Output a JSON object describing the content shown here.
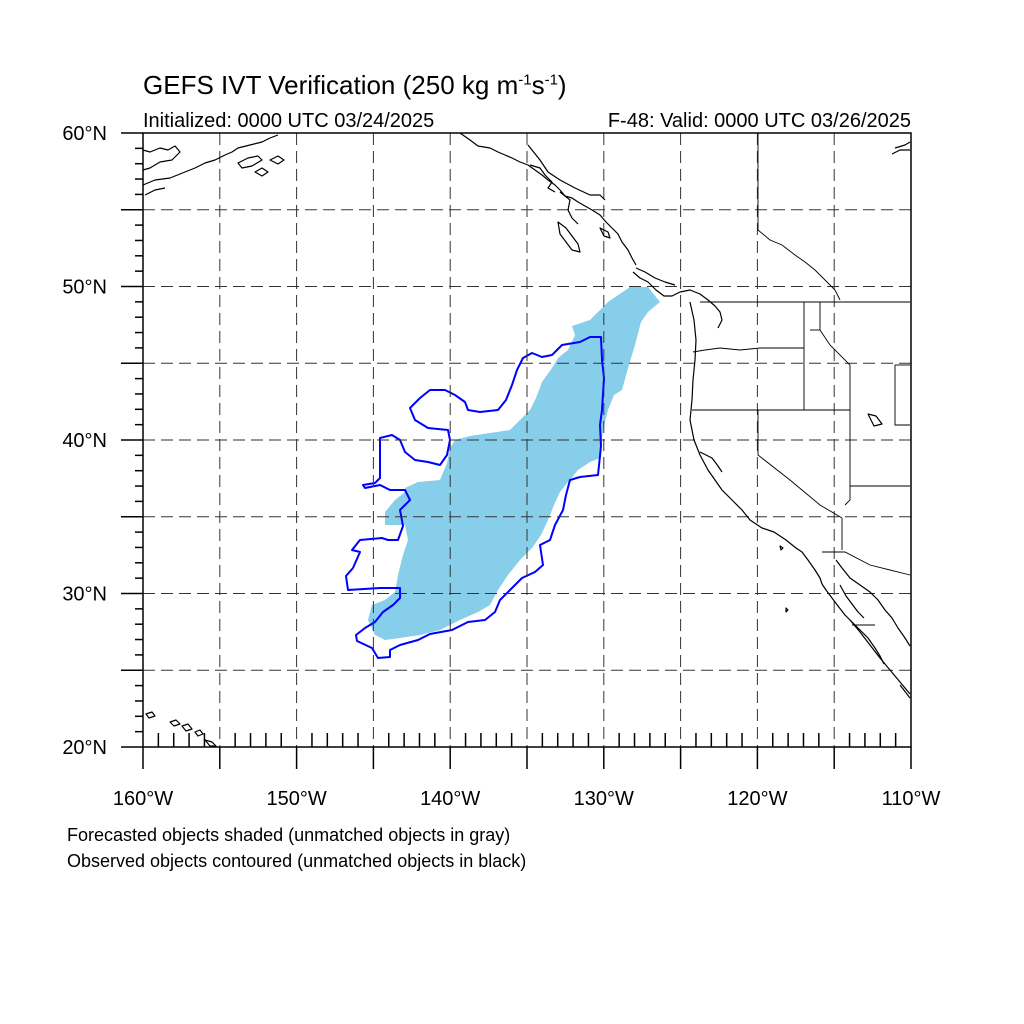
{
  "map": {
    "title_main": "GEFS IVT Verification (250 kg m",
    "title_exp1": "-1",
    "title_s": "s",
    "title_exp2": "-1",
    "title_close": ")",
    "initialized": "Initialized: 0000 UTC 03/24/2025",
    "valid": "F-48: Valid: 0000 UTC 03/26/2025",
    "lat_labels": [
      "60°N",
      "50°N",
      "40°N",
      "30°N",
      "20°N"
    ],
    "lon_labels": [
      "160°W",
      "150°W",
      "140°W",
      "130°W",
      "120°W",
      "110°W"
    ],
    "extent": {
      "lon_min": -160,
      "lon_max": -110,
      "lat_min": 20,
      "lat_max": 60
    },
    "grid": "dashed, every 5°",
    "forecast_fill_color": "#87ceeb",
    "observed_contour_color": "#0000ff",
    "coastline_color": "#000000"
  },
  "legend": {
    "line1": "Forecasted objects shaded (unmatched objects in gray)",
    "line2": "Observed objects contoured (unmatched objects in black)"
  }
}
